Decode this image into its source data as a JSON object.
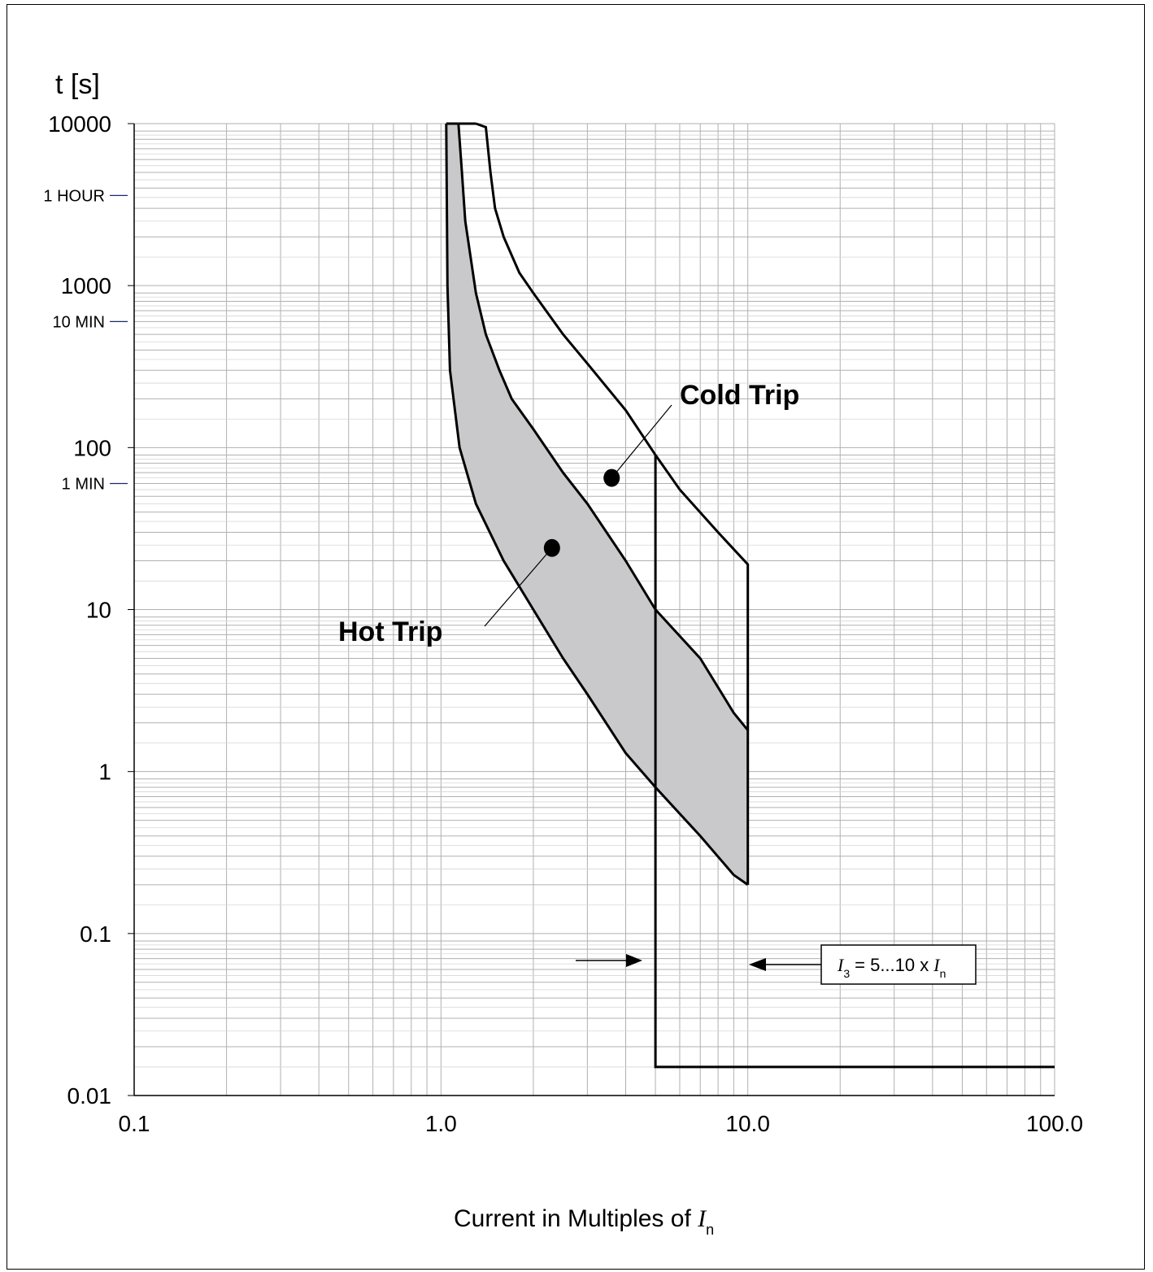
{
  "chart_data": {
    "type": "line",
    "title": "",
    "ylabel": "t [s]",
    "xlabel": "Current in Multiples of",
    "xlabel_symbol": "I",
    "xlabel_sub": "n",
    "x_scale": "log",
    "y_scale": "log",
    "xlim": [
      0.1,
      100
    ],
    "ylim": [
      0.01,
      10000
    ],
    "grid": true,
    "x_ticks": [
      "0.1",
      "1.0",
      "10.0",
      "100.0"
    ],
    "y_ticks": [
      "0.01",
      "0.1",
      "1",
      "10",
      "100",
      "1000",
      "10000"
    ],
    "time_markers": [
      {
        "label": "1 HOUR",
        "value": 3600
      },
      {
        "label": "10 MIN",
        "value": 600
      },
      {
        "label": "1 MIN",
        "value": 60
      }
    ],
    "series": [
      {
        "name": "Hot Trip",
        "upper": [
          [
            1.14,
            10000
          ],
          [
            1.17,
            5000
          ],
          [
            1.2,
            2500
          ],
          [
            1.3,
            900
          ],
          [
            1.4,
            500
          ],
          [
            1.55,
            300
          ],
          [
            1.7,
            200
          ],
          [
            2.0,
            130
          ],
          [
            2.5,
            70
          ],
          [
            3.0,
            45
          ],
          [
            4.0,
            20
          ],
          [
            5.0,
            10
          ],
          [
            7.0,
            5
          ],
          [
            9.0,
            2.3
          ],
          [
            10.0,
            1.8
          ]
        ],
        "lower": [
          [
            1.04,
            10000
          ],
          [
            1.05,
            1000
          ],
          [
            1.07,
            300
          ],
          [
            1.15,
            100
          ],
          [
            1.3,
            45
          ],
          [
            1.6,
            20
          ],
          [
            2.0,
            10
          ],
          [
            2.5,
            5
          ],
          [
            3.0,
            3
          ],
          [
            4.0,
            1.3
          ],
          [
            5.0,
            0.8
          ],
          [
            7.0,
            0.4
          ],
          [
            9.0,
            0.23
          ],
          [
            10.0,
            0.2
          ]
        ]
      },
      {
        "name": "Cold Trip",
        "points": [
          [
            1.3,
            10000
          ],
          [
            1.4,
            9500
          ],
          [
            1.45,
            5000
          ],
          [
            1.5,
            3000
          ],
          [
            1.6,
            2000
          ],
          [
            1.8,
            1200
          ],
          [
            2.0,
            900
          ],
          [
            2.5,
            500
          ],
          [
            3.0,
            330
          ],
          [
            4.0,
            170
          ],
          [
            5.0,
            90
          ],
          [
            6.0,
            55
          ],
          [
            8.0,
            30
          ],
          [
            10.0,
            19
          ],
          [
            10.0,
            0.2
          ]
        ]
      },
      {
        "name": "I3 = 5...10 x In",
        "band": [
          5,
          10
        ],
        "floor": 0.015,
        "points": [
          [
            5,
            90
          ],
          [
            5,
            0.015
          ],
          [
            10,
            0.015
          ],
          [
            100,
            0.015
          ]
        ]
      }
    ],
    "annotations": [
      {
        "text": "Cold Trip",
        "point": [
          3.6,
          65
        ]
      },
      {
        "text": "Hot Trip",
        "point": [
          2.3,
          24
        ]
      }
    ],
    "band_label": {
      "symbol": "I",
      "sub": "3",
      "text": "= 5...10 x",
      "symbol2": "I",
      "sub2": "n"
    }
  }
}
